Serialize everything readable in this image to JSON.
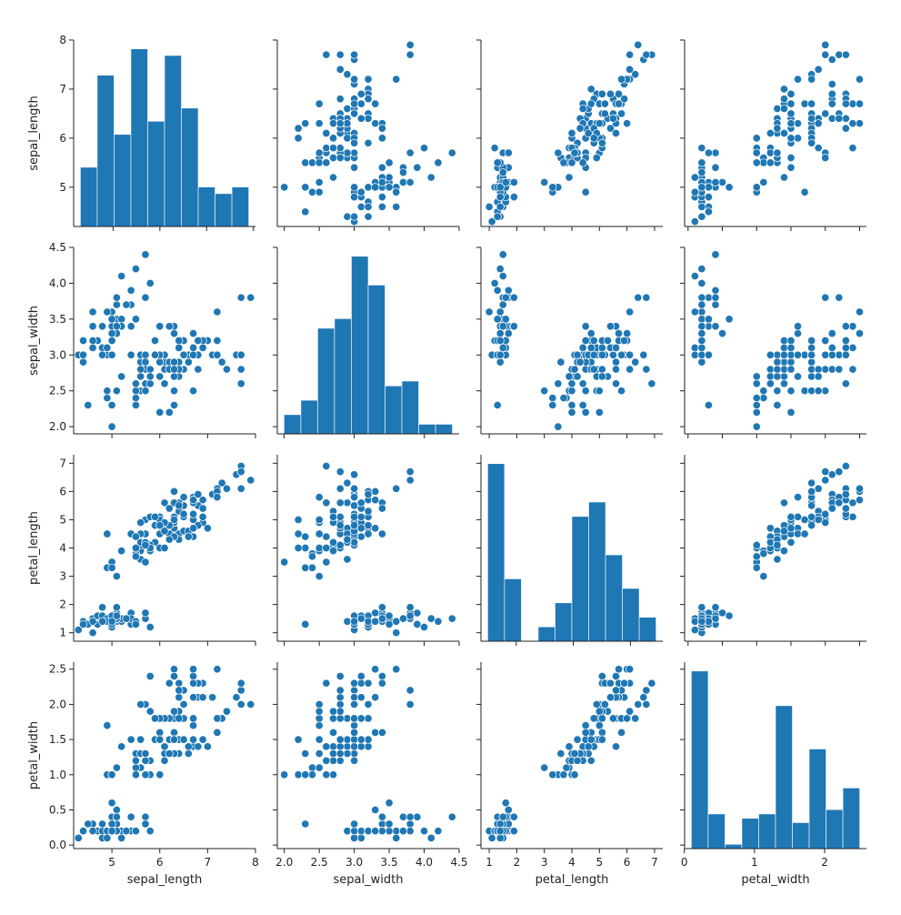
{
  "chart_data": {
    "type": "pairplot",
    "color": "#1f77b4",
    "variables": [
      "sepal_length",
      "sepal_width",
      "petal_length",
      "petal_width"
    ],
    "axes": {
      "sepal_length": {
        "label": "sepal_length",
        "range": [
          4.2,
          8.0
        ],
        "ticks": [
          4,
          5,
          6,
          7,
          8
        ],
        "tick_labels": [
          "",
          "5",
          "6",
          "7",
          "8"
        ]
      },
      "sepal_width": {
        "label": "sepal_width",
        "range": [
          1.9,
          4.5
        ],
        "ticks": [
          2.0,
          2.5,
          3.0,
          3.5,
          4.0,
          4.5
        ],
        "tick_labels": [
          "2.0",
          "2.5",
          "3.0",
          "3.5",
          "4.0",
          "4.5"
        ]
      },
      "petal_length": {
        "label": "petal_length",
        "range": [
          0.7,
          7.3
        ],
        "ticks": [
          1,
          2,
          3,
          4,
          5,
          6,
          7
        ],
        "tick_labels": [
          "1",
          "2",
          "3",
          "4",
          "5",
          "6",
          "7"
        ]
      },
      "petal_width": {
        "label": "petal_width",
        "range": [
          -0.05,
          2.6
        ],
        "ticks": [
          0.0,
          0.5,
          1.0,
          1.5,
          2.0,
          2.5
        ],
        "tick_labels": [
          "0.0",
          "0.5",
          "1.0",
          "1.5",
          "2.0",
          "2.5"
        ]
      }
    },
    "diag_x_ticks": {
      "sepal_length": {
        "ticks": [
          5,
          6,
          7,
          8
        ],
        "tick_labels": [
          "",
          "6",
          "",
          "8"
        ]
      },
      "sepal_width": {
        "ticks": [
          2,
          3,
          4
        ],
        "tick_labels": [
          "2",
          "3",
          "4"
        ]
      },
      "petal_length": {
        "ticks": [
          2,
          4,
          6
        ],
        "tick_labels": [
          "2",
          "4",
          "6"
        ]
      },
      "petal_width": {
        "ticks": [
          0,
          1,
          2
        ],
        "tick_labels": [
          "0",
          "1",
          "2"
        ]
      }
    },
    "histograms": {
      "sepal_length": {
        "bin_start": 4.3,
        "bin_width": 0.36,
        "counts": [
          9,
          23,
          14,
          27,
          16,
          26,
          18,
          6,
          5,
          6
        ]
      },
      "sepal_width": {
        "bin_start": 2.0,
        "bin_width": 0.24,
        "counts": [
          4,
          7,
          22,
          24,
          37,
          31,
          10,
          11,
          2,
          2
        ]
      },
      "petal_length": {
        "bin_start": 1.0,
        "bin_width": 0.59,
        "counts": [
          37,
          13,
          0,
          3,
          8,
          26,
          29,
          18,
          11,
          5
        ]
      },
      "petal_width": {
        "bin_start": 0.1,
        "bin_width": 0.24,
        "counts": [
          41,
          8,
          1,
          7,
          8,
          33,
          6,
          23,
          9,
          14
        ]
      }
    },
    "samples": [
      [
        5.1,
        3.5,
        1.4,
        0.2
      ],
      [
        4.9,
        3.0,
        1.4,
        0.2
      ],
      [
        4.7,
        3.2,
        1.3,
        0.2
      ],
      [
        4.6,
        3.1,
        1.5,
        0.2
      ],
      [
        5.0,
        3.6,
        1.4,
        0.2
      ],
      [
        5.4,
        3.9,
        1.7,
        0.4
      ],
      [
        4.6,
        3.4,
        1.4,
        0.3
      ],
      [
        5.0,
        3.4,
        1.5,
        0.2
      ],
      [
        4.4,
        2.9,
        1.4,
        0.2
      ],
      [
        4.9,
        3.1,
        1.5,
        0.1
      ],
      [
        5.4,
        3.7,
        1.5,
        0.2
      ],
      [
        4.8,
        3.4,
        1.6,
        0.2
      ],
      [
        4.8,
        3.0,
        1.4,
        0.1
      ],
      [
        4.3,
        3.0,
        1.1,
        0.1
      ],
      [
        5.8,
        4.0,
        1.2,
        0.2
      ],
      [
        5.7,
        4.4,
        1.5,
        0.4
      ],
      [
        5.4,
        3.9,
        1.3,
        0.4
      ],
      [
        5.1,
        3.5,
        1.4,
        0.3
      ],
      [
        5.7,
        3.8,
        1.7,
        0.3
      ],
      [
        5.1,
        3.8,
        1.5,
        0.3
      ],
      [
        5.4,
        3.4,
        1.7,
        0.2
      ],
      [
        5.1,
        3.7,
        1.5,
        0.4
      ],
      [
        4.6,
        3.6,
        1.0,
        0.2
      ],
      [
        5.1,
        3.3,
        1.7,
        0.5
      ],
      [
        4.8,
        3.4,
        1.9,
        0.2
      ],
      [
        5.0,
        3.0,
        1.6,
        0.2
      ],
      [
        5.0,
        3.4,
        1.6,
        0.4
      ],
      [
        5.2,
        3.5,
        1.5,
        0.2
      ],
      [
        5.2,
        3.4,
        1.4,
        0.2
      ],
      [
        4.7,
        3.2,
        1.6,
        0.2
      ],
      [
        4.8,
        3.1,
        1.6,
        0.2
      ],
      [
        5.4,
        3.4,
        1.5,
        0.4
      ],
      [
        5.2,
        4.1,
        1.5,
        0.1
      ],
      [
        5.5,
        4.2,
        1.4,
        0.2
      ],
      [
        4.9,
        3.1,
        1.5,
        0.2
      ],
      [
        5.0,
        3.2,
        1.2,
        0.2
      ],
      [
        5.5,
        3.5,
        1.3,
        0.2
      ],
      [
        4.9,
        3.6,
        1.4,
        0.1
      ],
      [
        4.4,
        3.0,
        1.3,
        0.2
      ],
      [
        5.1,
        3.4,
        1.5,
        0.2
      ],
      [
        5.0,
        3.5,
        1.3,
        0.3
      ],
      [
        4.5,
        2.3,
        1.3,
        0.3
      ],
      [
        4.4,
        3.2,
        1.3,
        0.2
      ],
      [
        5.0,
        3.5,
        1.6,
        0.6
      ],
      [
        5.1,
        3.8,
        1.9,
        0.4
      ],
      [
        4.8,
        3.0,
        1.4,
        0.3
      ],
      [
        5.1,
        3.8,
        1.6,
        0.2
      ],
      [
        4.6,
        3.2,
        1.4,
        0.2
      ],
      [
        5.3,
        3.7,
        1.5,
        0.2
      ],
      [
        5.0,
        3.3,
        1.4,
        0.2
      ],
      [
        7.0,
        3.2,
        4.7,
        1.4
      ],
      [
        6.4,
        3.2,
        4.5,
        1.5
      ],
      [
        6.9,
        3.1,
        4.9,
        1.5
      ],
      [
        5.5,
        2.3,
        4.0,
        1.3
      ],
      [
        6.5,
        2.8,
        4.6,
        1.5
      ],
      [
        5.7,
        2.8,
        4.5,
        1.3
      ],
      [
        6.3,
        3.3,
        4.7,
        1.6
      ],
      [
        4.9,
        2.4,
        3.3,
        1.0
      ],
      [
        6.6,
        2.9,
        4.6,
        1.3
      ],
      [
        5.2,
        2.7,
        3.9,
        1.4
      ],
      [
        5.0,
        2.0,
        3.5,
        1.0
      ],
      [
        5.9,
        3.0,
        4.2,
        1.5
      ],
      [
        6.0,
        2.2,
        4.0,
        1.0
      ],
      [
        6.1,
        2.9,
        4.7,
        1.4
      ],
      [
        5.6,
        2.9,
        3.6,
        1.3
      ],
      [
        6.7,
        3.1,
        4.4,
        1.4
      ],
      [
        5.6,
        3.0,
        4.5,
        1.5
      ],
      [
        5.8,
        2.7,
        4.1,
        1.0
      ],
      [
        6.2,
        2.2,
        4.5,
        1.5
      ],
      [
        5.6,
        2.5,
        3.9,
        1.1
      ],
      [
        5.9,
        3.2,
        4.8,
        1.8
      ],
      [
        6.1,
        2.8,
        4.0,
        1.3
      ],
      [
        6.3,
        2.5,
        4.9,
        1.5
      ],
      [
        6.1,
        2.8,
        4.7,
        1.2
      ],
      [
        6.4,
        2.9,
        4.3,
        1.3
      ],
      [
        6.6,
        3.0,
        4.4,
        1.4
      ],
      [
        6.8,
        2.8,
        4.8,
        1.4
      ],
      [
        6.7,
        3.0,
        5.0,
        1.7
      ],
      [
        6.0,
        2.9,
        4.5,
        1.5
      ],
      [
        5.7,
        2.6,
        3.5,
        1.0
      ],
      [
        5.5,
        2.4,
        3.8,
        1.1
      ],
      [
        5.5,
        2.4,
        3.7,
        1.0
      ],
      [
        5.8,
        2.7,
        3.9,
        1.2
      ],
      [
        6.0,
        2.7,
        5.1,
        1.6
      ],
      [
        5.4,
        3.0,
        4.5,
        1.5
      ],
      [
        6.0,
        3.4,
        4.5,
        1.6
      ],
      [
        6.7,
        3.1,
        4.7,
        1.5
      ],
      [
        6.3,
        2.3,
        4.4,
        1.3
      ],
      [
        5.6,
        3.0,
        4.1,
        1.3
      ],
      [
        5.5,
        2.5,
        4.0,
        1.3
      ],
      [
        5.5,
        2.6,
        4.4,
        1.2
      ],
      [
        6.1,
        3.0,
        4.6,
        1.4
      ],
      [
        5.8,
        2.6,
        4.0,
        1.2
      ],
      [
        5.0,
        2.3,
        3.3,
        1.0
      ],
      [
        5.6,
        2.7,
        4.2,
        1.3
      ],
      [
        5.7,
        3.0,
        4.2,
        1.2
      ],
      [
        5.7,
        2.9,
        4.2,
        1.3
      ],
      [
        6.2,
        2.9,
        4.3,
        1.3
      ],
      [
        5.1,
        2.5,
        3.0,
        1.1
      ],
      [
        5.7,
        2.8,
        4.1,
        1.3
      ],
      [
        6.3,
        3.3,
        6.0,
        2.5
      ],
      [
        5.8,
        2.7,
        5.1,
        1.9
      ],
      [
        7.1,
        3.0,
        5.9,
        2.1
      ],
      [
        6.3,
        2.9,
        5.6,
        1.8
      ],
      [
        6.5,
        3.0,
        5.8,
        2.2
      ],
      [
        7.6,
        3.0,
        6.6,
        2.1
      ],
      [
        4.9,
        2.5,
        4.5,
        1.7
      ],
      [
        7.3,
        2.9,
        6.3,
        1.8
      ],
      [
        6.7,
        2.5,
        5.8,
        1.8
      ],
      [
        7.2,
        3.6,
        6.1,
        2.5
      ],
      [
        6.5,
        3.2,
        5.1,
        2.0
      ],
      [
        6.4,
        2.7,
        5.3,
        1.9
      ],
      [
        6.8,
        3.0,
        5.5,
        2.1
      ],
      [
        5.7,
        2.5,
        5.0,
        2.0
      ],
      [
        5.8,
        2.8,
        5.1,
        2.4
      ],
      [
        6.4,
        3.2,
        5.3,
        2.3
      ],
      [
        6.5,
        3.0,
        5.5,
        1.8
      ],
      [
        7.7,
        3.8,
        6.7,
        2.2
      ],
      [
        7.7,
        2.6,
        6.9,
        2.3
      ],
      [
        6.0,
        2.2,
        5.0,
        1.5
      ],
      [
        6.9,
        3.2,
        5.7,
        2.3
      ],
      [
        5.6,
        2.8,
        4.9,
        2.0
      ],
      [
        7.7,
        2.8,
        6.7,
        2.0
      ],
      [
        6.3,
        2.7,
        4.9,
        1.8
      ],
      [
        6.7,
        3.3,
        5.7,
        2.1
      ],
      [
        7.2,
        3.2,
        6.0,
        1.8
      ],
      [
        6.2,
        2.8,
        4.8,
        1.8
      ],
      [
        6.1,
        3.0,
        4.9,
        1.8
      ],
      [
        6.4,
        2.8,
        5.6,
        2.1
      ],
      [
        7.2,
        3.0,
        5.8,
        1.6
      ],
      [
        7.4,
        2.8,
        6.1,
        1.9
      ],
      [
        7.9,
        3.8,
        6.4,
        2.0
      ],
      [
        6.4,
        2.8,
        5.6,
        2.2
      ],
      [
        6.3,
        2.8,
        5.1,
        1.5
      ],
      [
        6.1,
        2.6,
        5.6,
        1.4
      ],
      [
        7.7,
        3.0,
        6.1,
        2.3
      ],
      [
        6.3,
        3.4,
        5.6,
        2.4
      ],
      [
        6.4,
        3.1,
        5.5,
        1.8
      ],
      [
        6.0,
        3.0,
        4.8,
        1.8
      ],
      [
        6.9,
        3.1,
        5.4,
        2.1
      ],
      [
        6.7,
        3.1,
        5.6,
        2.4
      ],
      [
        6.9,
        3.1,
        5.1,
        2.3
      ],
      [
        5.8,
        2.7,
        5.1,
        1.9
      ],
      [
        6.8,
        3.2,
        5.9,
        2.3
      ],
      [
        6.7,
        3.3,
        5.7,
        2.5
      ],
      [
        6.7,
        3.0,
        5.2,
        2.3
      ],
      [
        6.3,
        2.5,
        5.0,
        1.9
      ],
      [
        6.5,
        3.0,
        5.2,
        2.0
      ],
      [
        6.2,
        3.4,
        5.4,
        2.3
      ],
      [
        5.9,
        3.0,
        5.1,
        1.8
      ]
    ]
  }
}
